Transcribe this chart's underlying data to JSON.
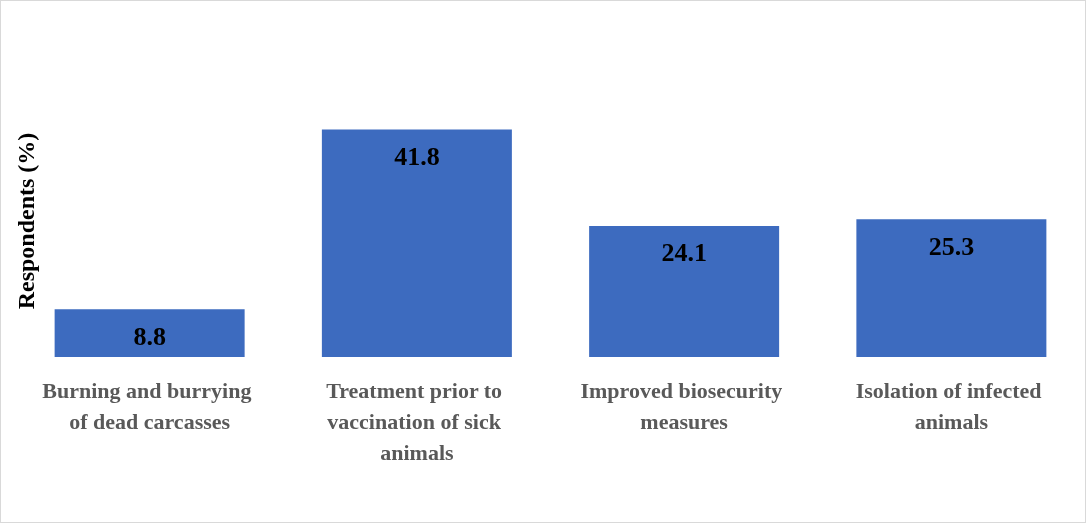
{
  "chart_data": {
    "type": "bar",
    "ylabel": "Respondents (%)",
    "categories": [
      "Burning and burrying of dead carcasses",
      "Treatment prior to vaccination of sick animals",
      "Improved biosecurity measures",
      "Isolation of infected animals"
    ],
    "values": [
      8.8,
      41.8,
      24.1,
      25.3
    ],
    "color": "#3d6bbf",
    "data_labels": true
  }
}
